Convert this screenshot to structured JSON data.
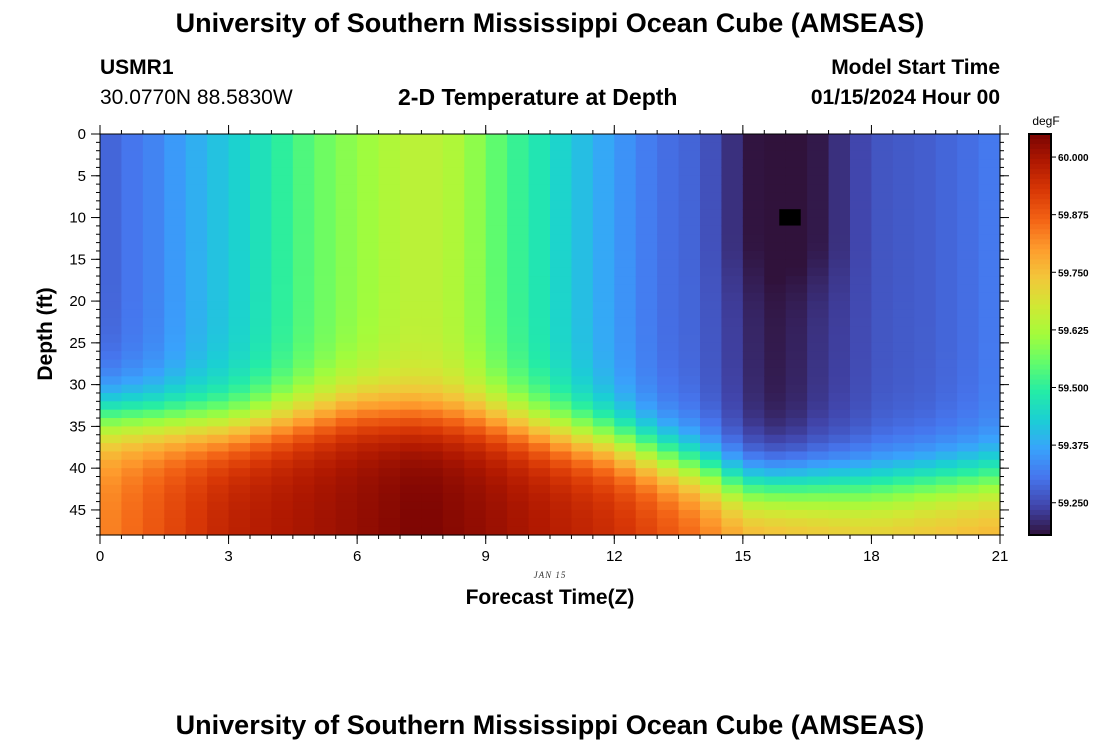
{
  "header": {
    "title": "University of Southern Mississippi Ocean Cube (AMSEAS)",
    "station_id": "USMR1",
    "coordinates": "30.0770N  88.5830W",
    "subtitle": "2-D Temperature at Depth",
    "model_start_label": "Model Start Time",
    "model_start_value": "01/15/2024 Hour 00"
  },
  "footer": {
    "title": "University of Southern Mississippi Ocean Cube (AMSEAS)"
  },
  "colors": {
    "background": "#ffffff",
    "colormap": [
      "#30123b",
      "#4145ab",
      "#4675ed",
      "#39a2fc",
      "#1bcfd4",
      "#24eca6",
      "#61fc6c",
      "#a4fc3b",
      "#d1e834",
      "#f3c63a",
      "#fe9b2d",
      "#f36315",
      "#d93806",
      "#b11901",
      "#7a0403"
    ]
  },
  "chart_data": {
    "type": "heatmap",
    "title": "2-D Temperature at Depth",
    "xlabel": "Forecast Time(Z)",
    "ylabel": "Depth (ft)",
    "date_label": "JAN 15",
    "x_ticks": [
      0,
      3,
      6,
      9,
      12,
      15,
      18,
      21
    ],
    "y_ticks": [
      0,
      5,
      10,
      15,
      20,
      25,
      30,
      35,
      40,
      45
    ],
    "xlim": [
      0,
      21
    ],
    "ylim": [
      0,
      48
    ],
    "y_inverted": true,
    "colorbar": {
      "unit": "degF",
      "ticks": [
        "60.000",
        "59.875",
        "59.750",
        "59.625",
        "59.500",
        "59.375",
        "59.250"
      ],
      "tick_values": [
        60.0,
        59.875,
        59.75,
        59.625,
        59.5,
        59.375,
        59.25
      ],
      "vmin": 59.18,
      "vmax": 60.05
    },
    "nx": 42,
    "ny": 48,
    "surface_temp_by_time": [
      [
        0,
        59.27
      ],
      [
        0.5,
        59.3
      ],
      [
        1,
        59.31
      ],
      [
        1.5,
        59.34
      ],
      [
        2,
        59.37
      ],
      [
        2.5,
        59.4
      ],
      [
        3,
        59.42
      ],
      [
        3.5,
        59.45
      ],
      [
        4,
        59.48
      ],
      [
        4.5,
        59.52
      ],
      [
        5,
        59.55
      ],
      [
        5.5,
        59.58
      ],
      [
        6,
        59.6
      ],
      [
        6.5,
        59.62
      ],
      [
        7,
        59.64
      ],
      [
        7.5,
        59.65
      ],
      [
        8,
        59.64
      ],
      [
        8.5,
        59.62
      ],
      [
        9,
        59.57
      ],
      [
        9.5,
        59.53
      ],
      [
        10,
        59.49
      ],
      [
        10.5,
        59.46
      ],
      [
        11,
        59.42
      ],
      [
        11.5,
        59.39
      ],
      [
        12,
        59.36
      ],
      [
        12.5,
        59.33
      ],
      [
        13,
        59.3
      ],
      [
        13.5,
        59.29
      ],
      [
        14,
        59.28
      ],
      [
        14.5,
        59.25
      ],
      [
        15,
        59.22
      ],
      [
        15.5,
        59.19
      ],
      [
        16,
        59.19
      ],
      [
        16.5,
        59.21
      ],
      [
        17,
        59.23
      ],
      [
        17.5,
        59.24
      ],
      [
        18,
        59.26
      ],
      [
        18.5,
        59.27
      ],
      [
        19,
        59.27
      ],
      [
        19.5,
        59.28
      ],
      [
        20,
        59.29
      ],
      [
        20.5,
        59.3
      ],
      [
        21,
        59.32
      ]
    ],
    "bottom_temp_by_time": [
      [
        0,
        59.82
      ],
      [
        3,
        59.97
      ],
      [
        6,
        60.02
      ],
      [
        7.5,
        60.05
      ],
      [
        9,
        60.02
      ],
      [
        12,
        59.95
      ],
      [
        14,
        59.86
      ],
      [
        15,
        59.8
      ],
      [
        18,
        59.75
      ],
      [
        21,
        59.78
      ]
    ],
    "thermocline_depth_ft_by_time": [
      [
        0,
        34
      ],
      [
        3,
        35
      ],
      [
        6,
        33
      ],
      [
        9,
        34
      ],
      [
        12,
        37
      ],
      [
        14,
        40
      ],
      [
        15,
        42
      ],
      [
        18,
        42
      ],
      [
        21,
        41
      ]
    ],
    "cold_core": {
      "time": 16,
      "depth_ft": 12,
      "temp": 59.17,
      "bottom_ft": 22
    },
    "missing_cell": {
      "time": 16,
      "depth_ft": 9.5
    }
  }
}
